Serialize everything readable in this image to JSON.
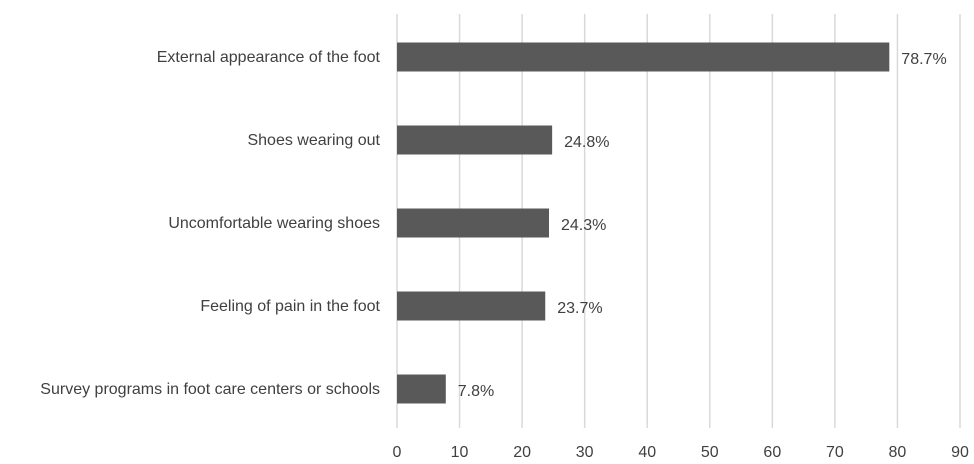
{
  "chart_data": {
    "type": "bar",
    "orientation": "horizontal",
    "categories": [
      "External appearance of the foot",
      "Shoes wearing out",
      "Uncomfortable wearing shoes",
      "Feeling of pain in the foot",
      "Survey programs in foot care centers or schools"
    ],
    "values": [
      78.7,
      24.8,
      24.3,
      23.7,
      7.8
    ],
    "data_labels": [
      "78.7%",
      "24.8%",
      "24.3%",
      "23.7%",
      "7.8%"
    ],
    "xlim": [
      0,
      90
    ],
    "x_ticks": [
      0,
      10,
      20,
      30,
      40,
      50,
      60,
      70,
      80,
      90
    ],
    "grid": true,
    "legend": "none",
    "bar_color": "#595959",
    "grid_color": "#d9d9d9",
    "text_color": "#404040"
  }
}
